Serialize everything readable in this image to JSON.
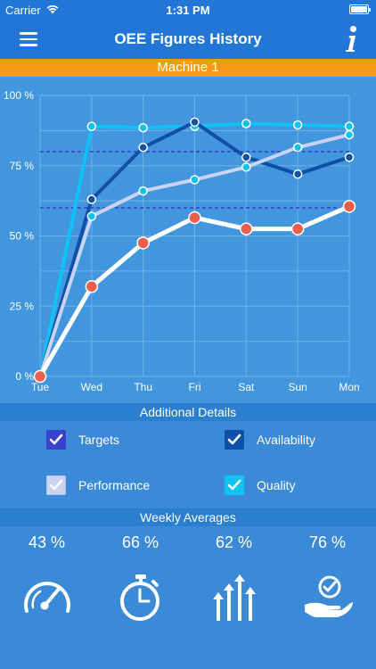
{
  "status_bar": {
    "carrier": "Carrier",
    "time": "1:31 PM"
  },
  "nav": {
    "title": "OEE Figures History",
    "menu_icon": "hamburger-menu-icon",
    "info_icon": "info-icon"
  },
  "machine": {
    "name": "Machine 1"
  },
  "colors": {
    "header": "#2277d6",
    "machine_bar": "#f19c14",
    "availability": "#0f4fa8",
    "performance": "#c9d3f2",
    "quality": "#0fc2f5",
    "oee": "#ffffff",
    "oee_marker": "#e8604c",
    "target_line": "#3a3fcc"
  },
  "chart_data": {
    "type": "line",
    "categories": [
      "Tue",
      "Wed",
      "Thu",
      "Fri",
      "Sat",
      "Sun",
      "Mon"
    ],
    "y_tick_labels": [
      "0 %",
      "25 %",
      "50 %",
      "75 %",
      "100 %"
    ],
    "ylim": [
      0,
      100
    ],
    "grid": true,
    "series": [
      {
        "key": "quality",
        "values": [
          0,
          89,
          88.5,
          89,
          90,
          89.5,
          89
        ]
      },
      {
        "key": "availability",
        "values": [
          0,
          63,
          81.5,
          90.5,
          78,
          72,
          78
        ]
      },
      {
        "key": "performance",
        "values": [
          0,
          57,
          66,
          70,
          74.5,
          81.5,
          86
        ]
      },
      {
        "key": "oee",
        "values": [
          0,
          32,
          47.5,
          56.5,
          52.5,
          52.5,
          60.5
        ]
      }
    ],
    "target_lines": [
      80,
      60
    ]
  },
  "details": {
    "title": "Additional Details",
    "items": [
      {
        "label": "Targets",
        "checked": true,
        "color": "#3a3fcc"
      },
      {
        "label": "Availability",
        "checked": true,
        "color": "#0f4fa8"
      },
      {
        "label": "Performance",
        "checked": true,
        "color": "#c9d3f2"
      },
      {
        "label": "Quality",
        "checked": true,
        "color": "#0fc2f5"
      }
    ]
  },
  "averages": {
    "title": "Weekly Averages",
    "items": [
      {
        "value": "43 %",
        "icon": "speedometer-icon"
      },
      {
        "value": "66 %",
        "icon": "stopwatch-icon"
      },
      {
        "value": "62 %",
        "icon": "performance-arrows-icon"
      },
      {
        "value": "76 %",
        "icon": "quality-hand-check-icon"
      }
    ]
  }
}
